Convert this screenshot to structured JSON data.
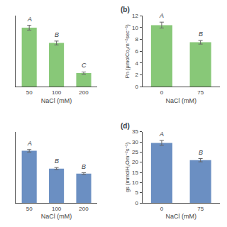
{
  "chart_data": [
    {
      "type": "bar",
      "categories": [
        "50",
        "100",
        "200"
      ],
      "values": [
        10.8,
        8.0,
        2.5
      ],
      "errors": [
        0.45,
        0.35,
        0.2
      ],
      "annotations": [
        "A",
        "B",
        "C"
      ],
      "color": "#88C878",
      "xlabel": "NaCl (mM)",
      "ylim": [
        0,
        13
      ],
      "tick_labels": "x",
      "grid": false
    },
    {
      "type": "bar",
      "title": "(b)",
      "categories": [
        "0",
        "75"
      ],
      "values": [
        10.4,
        7.5
      ],
      "errors": [
        0.5,
        0.3
      ],
      "annotations": [
        "A",
        "B"
      ],
      "color": "#88C878",
      "xlabel": "NaCl (mM)",
      "ylabel": "Pn (μmolCo₂m⁻²sec⁻¹)",
      "ylim": [
        0,
        12
      ],
      "yticks": [
        0,
        2,
        4,
        6,
        8,
        10,
        12
      ],
      "grid": false
    },
    {
      "type": "bar",
      "categories": [
        "50",
        "100",
        "200"
      ],
      "values": [
        20.5,
        13.5,
        11.5
      ],
      "errors": [
        0.5,
        0.4,
        0.35
      ],
      "annotations": [
        "A",
        "B",
        "B"
      ],
      "color": "#6B8FC2",
      "xlabel": "NaCl (mM)",
      "ylim": [
        0,
        28
      ],
      "tick_labels": "x",
      "grid": false
    },
    {
      "type": "bar",
      "title": "(d)",
      "categories": [
        "0",
        "75"
      ],
      "values": [
        29.5,
        21.0
      ],
      "errors": [
        1.2,
        0.8
      ],
      "annotations": [
        "A",
        "B"
      ],
      "color": "#6B8FC2",
      "xlabel": "NaCl (mM)",
      "ylabel": "gs (mmolH₂Om⁻²s⁻¹)",
      "ylim": [
        0,
        35
      ],
      "yticks": [
        0,
        5,
        10,
        15,
        20,
        25,
        30,
        35
      ],
      "grid": false
    }
  ]
}
